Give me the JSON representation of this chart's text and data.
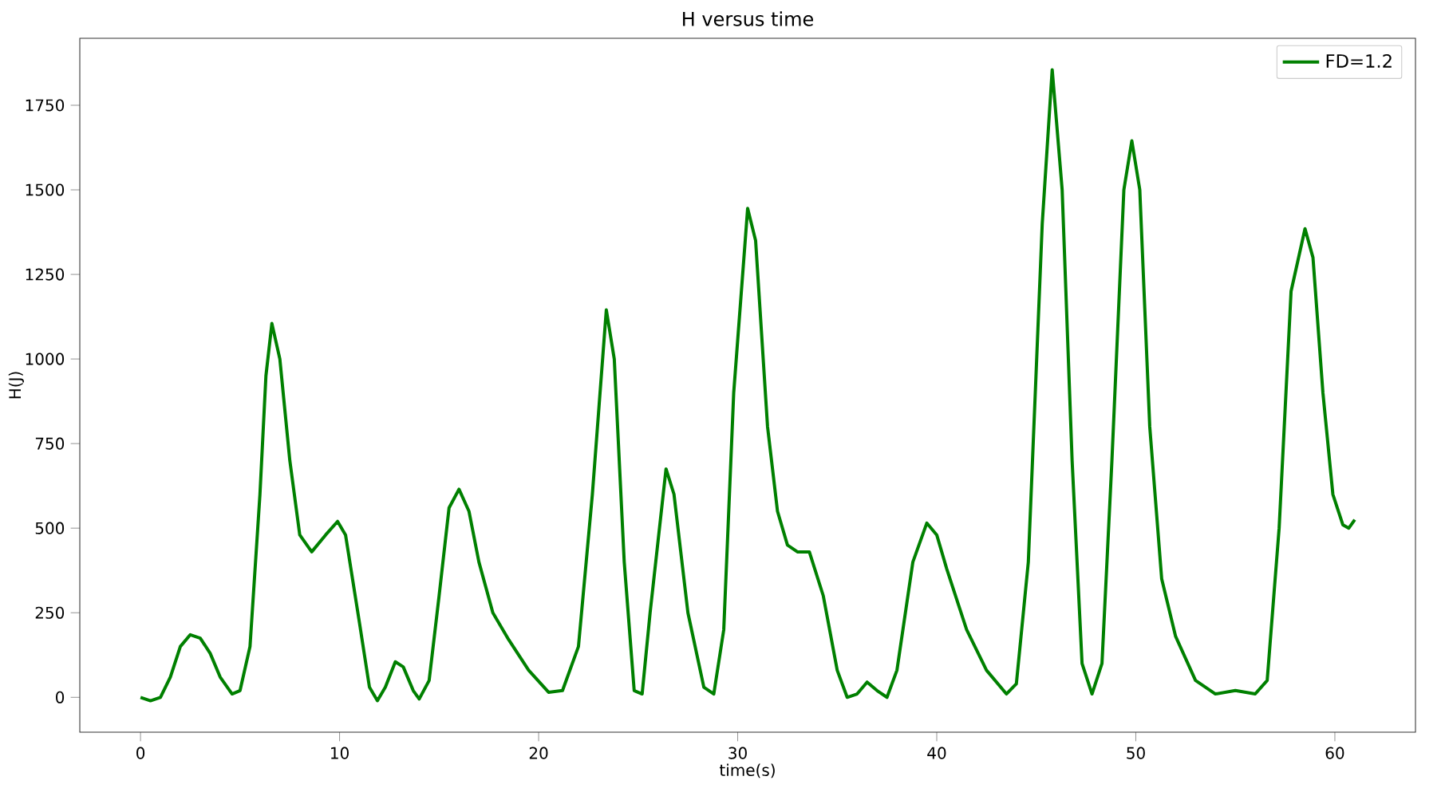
{
  "chart_data": {
    "type": "line",
    "title": "H versus time",
    "xlabel": "time(s)",
    "ylabel": "H(J)",
    "xlim": [
      -3.05,
      64.05
    ],
    "ylim": [
      -103,
      1948
    ],
    "xticks": [
      0,
      10,
      20,
      30,
      40,
      50,
      60
    ],
    "yticks": [
      0,
      250,
      500,
      750,
      1000,
      1250,
      1500,
      1750
    ],
    "legend": "top right",
    "grid": false,
    "marker": "none",
    "line_style": "solid",
    "series": [
      {
        "name": "FD=1.2",
        "color": "#008000",
        "x": [
          0,
          0.5,
          1,
          1.5,
          2,
          2.5,
          3,
          3.5,
          4,
          4.6,
          5,
          5.5,
          6,
          6.3,
          6.6,
          7,
          7.5,
          8,
          8.6,
          9.3,
          9.9,
          10.3,
          11,
          11.5,
          11.9,
          12.3,
          12.8,
          13.2,
          13.7,
          14,
          14.5,
          15,
          15.5,
          16,
          16.5,
          17,
          17.7,
          18.5,
          19.5,
          20.5,
          21.2,
          22,
          22.7,
          23.4,
          23.8,
          24.3,
          24.8,
          25.2,
          25.6,
          26.4,
          26.8,
          27.5,
          28.3,
          28.8,
          29.3,
          29.8,
          30.5,
          30.9,
          31.5,
          32,
          32.5,
          33,
          33.6,
          34.3,
          35,
          35.5,
          36,
          36.5,
          37,
          37.5,
          38,
          38.8,
          39.5,
          40,
          40.5,
          41.5,
          42.5,
          43.5,
          44,
          44.6,
          45.3,
          45.8,
          46.3,
          46.8,
          47.3,
          47.8,
          48.3,
          48.8,
          49.4,
          49.8,
          50.2,
          50.7,
          51.3,
          52,
          53,
          54,
          55,
          56,
          56.6,
          57.2,
          57.8,
          58.5,
          58.9,
          59.4,
          59.9,
          60.4,
          60.7,
          61
        ],
        "values": [
          0,
          -10,
          0,
          60,
          150,
          185,
          175,
          130,
          60,
          10,
          20,
          150,
          600,
          950,
          1105,
          1000,
          700,
          480,
          430,
          480,
          520,
          480,
          220,
          30,
          -10,
          30,
          105,
          90,
          20,
          -5,
          50,
          300,
          560,
          615,
          550,
          400,
          250,
          170,
          80,
          15,
          20,
          150,
          600,
          1145,
          1000,
          400,
          20,
          10,
          250,
          675,
          600,
          250,
          30,
          10,
          200,
          900,
          1445,
          1350,
          800,
          550,
          450,
          430,
          430,
          300,
          80,
          0,
          10,
          45,
          20,
          0,
          80,
          400,
          515,
          480,
          380,
          200,
          80,
          10,
          40,
          400,
          1400,
          1855,
          1500,
          700,
          100,
          10,
          100,
          700,
          1500,
          1645,
          1500,
          800,
          350,
          180,
          50,
          10,
          20,
          10,
          50,
          500,
          1200,
          1385,
          1300,
          900,
          600,
          510,
          500,
          525
        ]
      }
    ]
  }
}
